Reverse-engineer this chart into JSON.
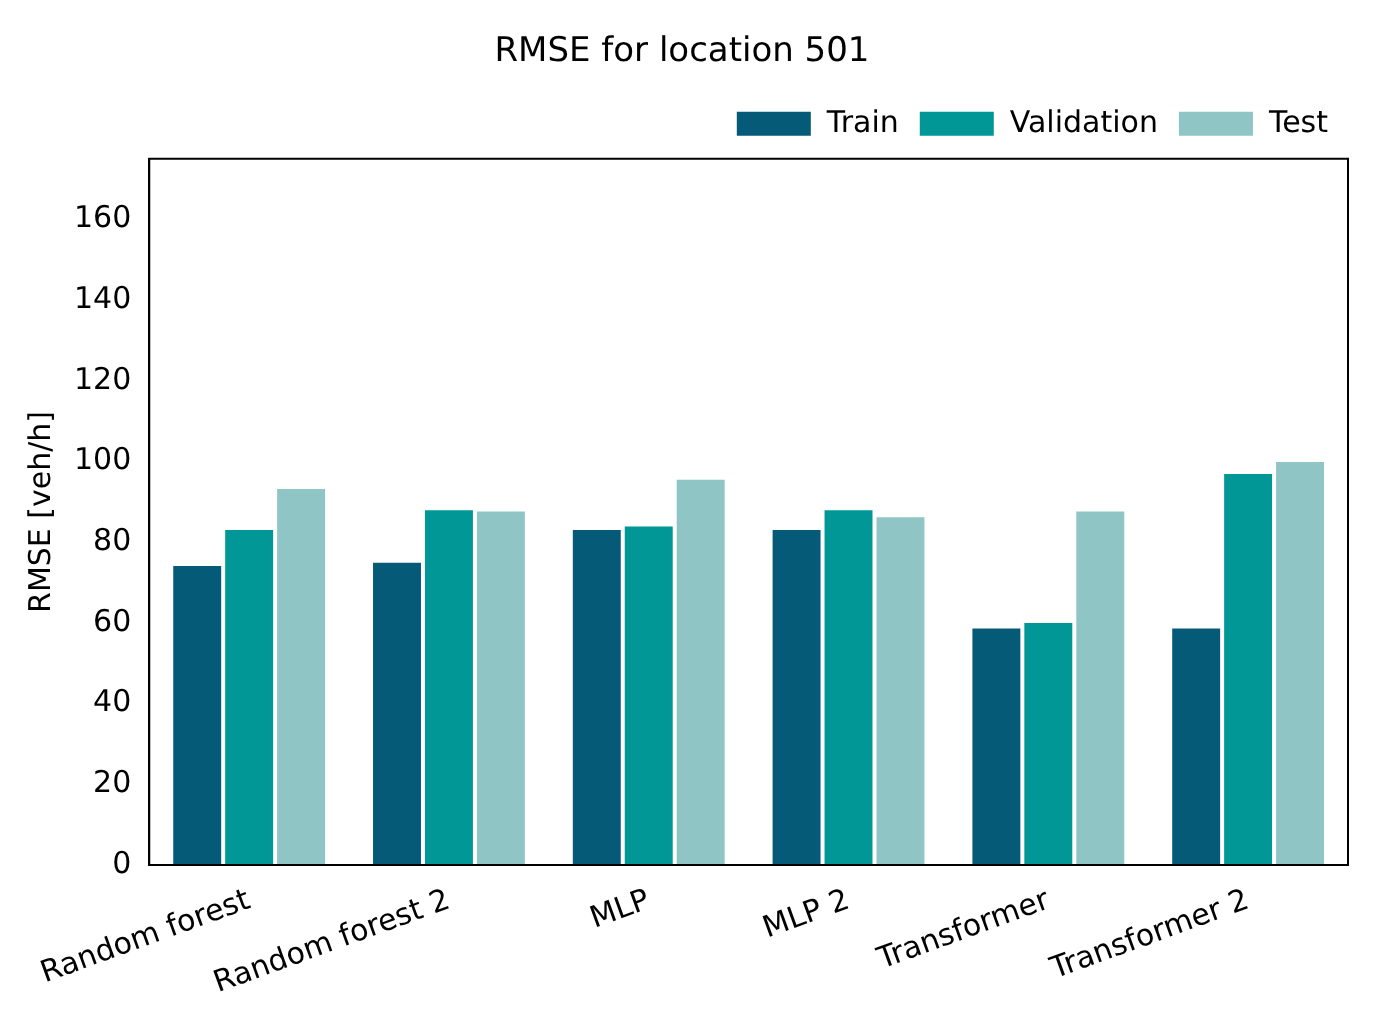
{
  "chart_data": {
    "type": "bar",
    "title": "RMSE for location 501",
    "ylabel": "RMSE [veh/h]",
    "categories": [
      "Random forest",
      "Random forest 2",
      "MLP",
      "MLP 2",
      "Transformer",
      "Transformer 2"
    ],
    "series": [
      {
        "name": "Train",
        "color": "#055a78",
        "values": [
          74.6,
          75.4,
          83.5,
          83.5,
          59.1,
          59.1
        ]
      },
      {
        "name": "Validation",
        "color": "#019797",
        "values": [
          83.5,
          88.4,
          84.4,
          88.4,
          60.5,
          97.4
        ]
      },
      {
        "name": "Test",
        "color": "#8fc5c5",
        "values": [
          93.7,
          88.1,
          96.0,
          86.7,
          88.1,
          100.4
        ]
      }
    ],
    "ylim": [
      0,
      175
    ],
    "yticks": [
      0,
      20,
      40,
      60,
      80,
      100,
      120,
      140,
      160
    ],
    "grid": false,
    "legend": "top right"
  }
}
